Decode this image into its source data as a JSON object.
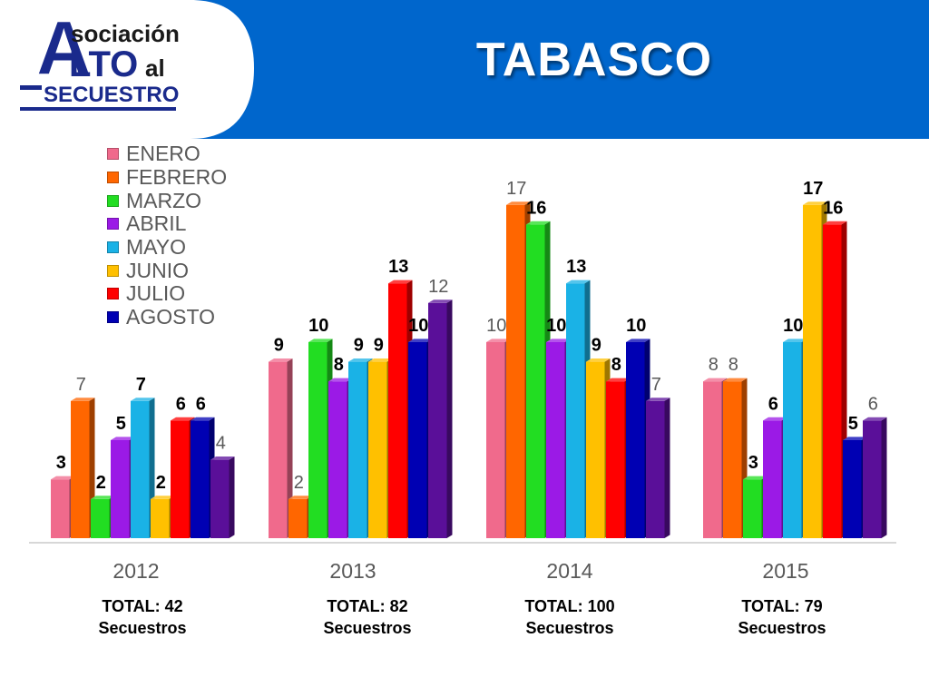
{
  "header": {
    "title": "TABASCO",
    "logo_text": [
      "sociación",
      "A",
      "LTO",
      "al",
      "SECUESTRO"
    ],
    "band_color": "#0066CC"
  },
  "chart_data": {
    "type": "bar",
    "categories": [
      "2012",
      "2013",
      "2014",
      "2015"
    ],
    "series": [
      {
        "name": "ENERO",
        "color": "#F06A8C",
        "values": [
          3,
          9,
          10,
          8
        ]
      },
      {
        "name": "FEBRERO",
        "color": "#FF6600",
        "values": [
          7,
          2,
          17,
          8
        ]
      },
      {
        "name": "MARZO",
        "color": "#22DD22",
        "values": [
          2,
          10,
          16,
          3
        ]
      },
      {
        "name": "ABRIL",
        "color": "#9B1AE6",
        "values": [
          5,
          8,
          10,
          6
        ]
      },
      {
        "name": "MAYO",
        "color": "#1AB2E6",
        "values": [
          7,
          9,
          13,
          10
        ]
      },
      {
        "name": "JUNIO",
        "color": "#FFC000",
        "values": [
          2,
          9,
          9,
          17
        ]
      },
      {
        "name": "JULIO",
        "color": "#FF0000",
        "values": [
          6,
          13,
          8,
          16
        ]
      },
      {
        "name": "AGOSTO",
        "color": "#0000B3",
        "values": [
          6,
          10,
          10,
          5
        ]
      },
      {
        "name": "",
        "color": "#5A0F99",
        "values": [
          4,
          12,
          7,
          6
        ]
      }
    ],
    "ylim": [
      0,
      17
    ],
    "legend_position": "top-left",
    "grid": false
  },
  "totals": [
    {
      "line1": "TOTAL: 42",
      "line2": "Secuestros"
    },
    {
      "line1": "TOTAL: 82",
      "line2": "Secuestros"
    },
    {
      "line1": "TOTAL: 100",
      "line2": "Secuestros"
    },
    {
      "line1": "TOTAL: 79",
      "line2": "Secuestros"
    }
  ]
}
